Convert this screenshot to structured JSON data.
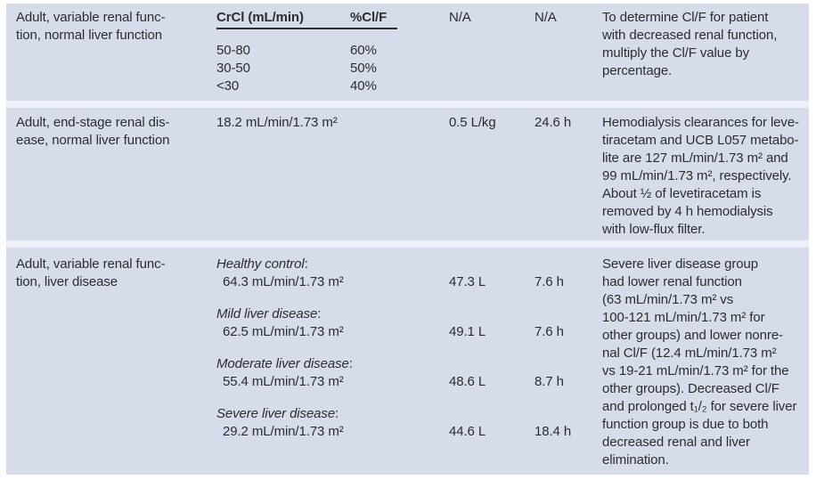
{
  "strings": {
    "colon": ":"
  },
  "table": {
    "rows": [
      {
        "population": "Adult, variable renal func-\ntion, normal liver function",
        "crcl_subtable": {
          "header_col1": "CrCl (mL/min)",
          "header_col2": "%Cl/F",
          "values": [
            {
              "range": "50-80",
              "pct": "60%"
            },
            {
              "range": "30-50",
              "pct": "50%"
            },
            {
              "range": "<30",
              "pct": "40%"
            }
          ]
        },
        "volume": "N/A",
        "half_life": "N/A",
        "comment": "To determine Cl/F for patient\nwith decreased renal function,\nmultiply the Cl/F value by\npercentage."
      },
      {
        "population": "Adult, end-stage renal dis-\nease, normal liver function",
        "clearance": "18.2 mL/min/1.73 m²",
        "volume": "0.5 L/kg",
        "half_life": "24.6 h",
        "comment": "Hemodialysis clearances for leve-\ntiracetam and UCB L057 metabo-\nlite are 127 mL/min/1.73 m² and\n99 mL/min/1.73 m², respectively.\nAbout ½ of levetiracetam is\nremoved by 4 h hemodialysis\nwith low-flux filter."
      },
      {
        "population": "Adult, variable renal func-\ntion, liver disease",
        "groups": [
          {
            "label": "Healthy control",
            "clearance": "64.3 mL/min/1.73 m²",
            "volume": "47.3 L",
            "half_life": "7.6 h"
          },
          {
            "label": "Mild liver disease",
            "clearance": "62.5 mL/min/1.73 m²",
            "volume": "49.1 L",
            "half_life": "7.6 h"
          },
          {
            "label": "Moderate liver disease",
            "clearance": "55.4 mL/min/1.73 m²",
            "volume": "48.6 L",
            "half_life": "8.7 h"
          },
          {
            "label": "Severe liver disease",
            "clearance": "29.2 mL/min/1.73 m²",
            "volume": "44.6 L",
            "half_life": "18.4 h"
          }
        ],
        "comment": "Severe liver disease group\nhad lower renal function\n(63 mL/min/1.73 m² vs\n100-121 mL/min/1.73 m² for\nother groups) and lower nonre-\nnal Cl/F (12.4 mL/min/1.73 m²\nvs 19-21 mL/min/1.73 m² for the\nother groups). Decreased Cl/F\nand prolonged t₁/₂ for severe liver\nfunction group is due to both\ndecreased renal and liver\nelimination."
      }
    ]
  }
}
